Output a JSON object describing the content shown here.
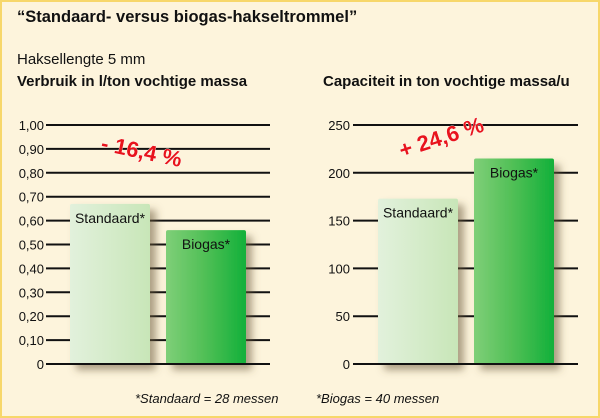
{
  "title": "“Standaard- versus biogas-hakseltrommel”",
  "subtitle": "Haksellengte 5 mm",
  "footnotes": [
    "*Standaard = 28 messen",
    "*Biogas = 40 messen"
  ],
  "colors": {
    "standaard": "#d2ebc8",
    "biogas": "#3cbf4a",
    "annotation": "#e8141c",
    "background": "#fdf4dc",
    "border": "#f7d76a"
  },
  "chart_data": [
    {
      "type": "bar",
      "title": "Verbruik in l/ton vochtige massa",
      "categories": [
        "Standaard*",
        "Biogas*"
      ],
      "values": [
        0.67,
        0.56
      ],
      "ylim": [
        0,
        1.0
      ],
      "yticks": [
        "0",
        "0,10",
        "0,20",
        "0,30",
        "0,40",
        "0,50",
        "0,60",
        "0,70",
        "0,80",
        "0,90",
        "1,00"
      ],
      "grid": true,
      "annotation": "- 16,4 %"
    },
    {
      "type": "bar",
      "title": "Capaciteit in ton vochtige massa/u",
      "categories": [
        "Standaard*",
        "Biogas*"
      ],
      "values": [
        173,
        215
      ],
      "ylim": [
        0,
        250
      ],
      "yticks": [
        "0",
        "50",
        "100",
        "150",
        "200",
        "250"
      ],
      "grid": true,
      "annotation": "+ 24,6 %"
    }
  ]
}
